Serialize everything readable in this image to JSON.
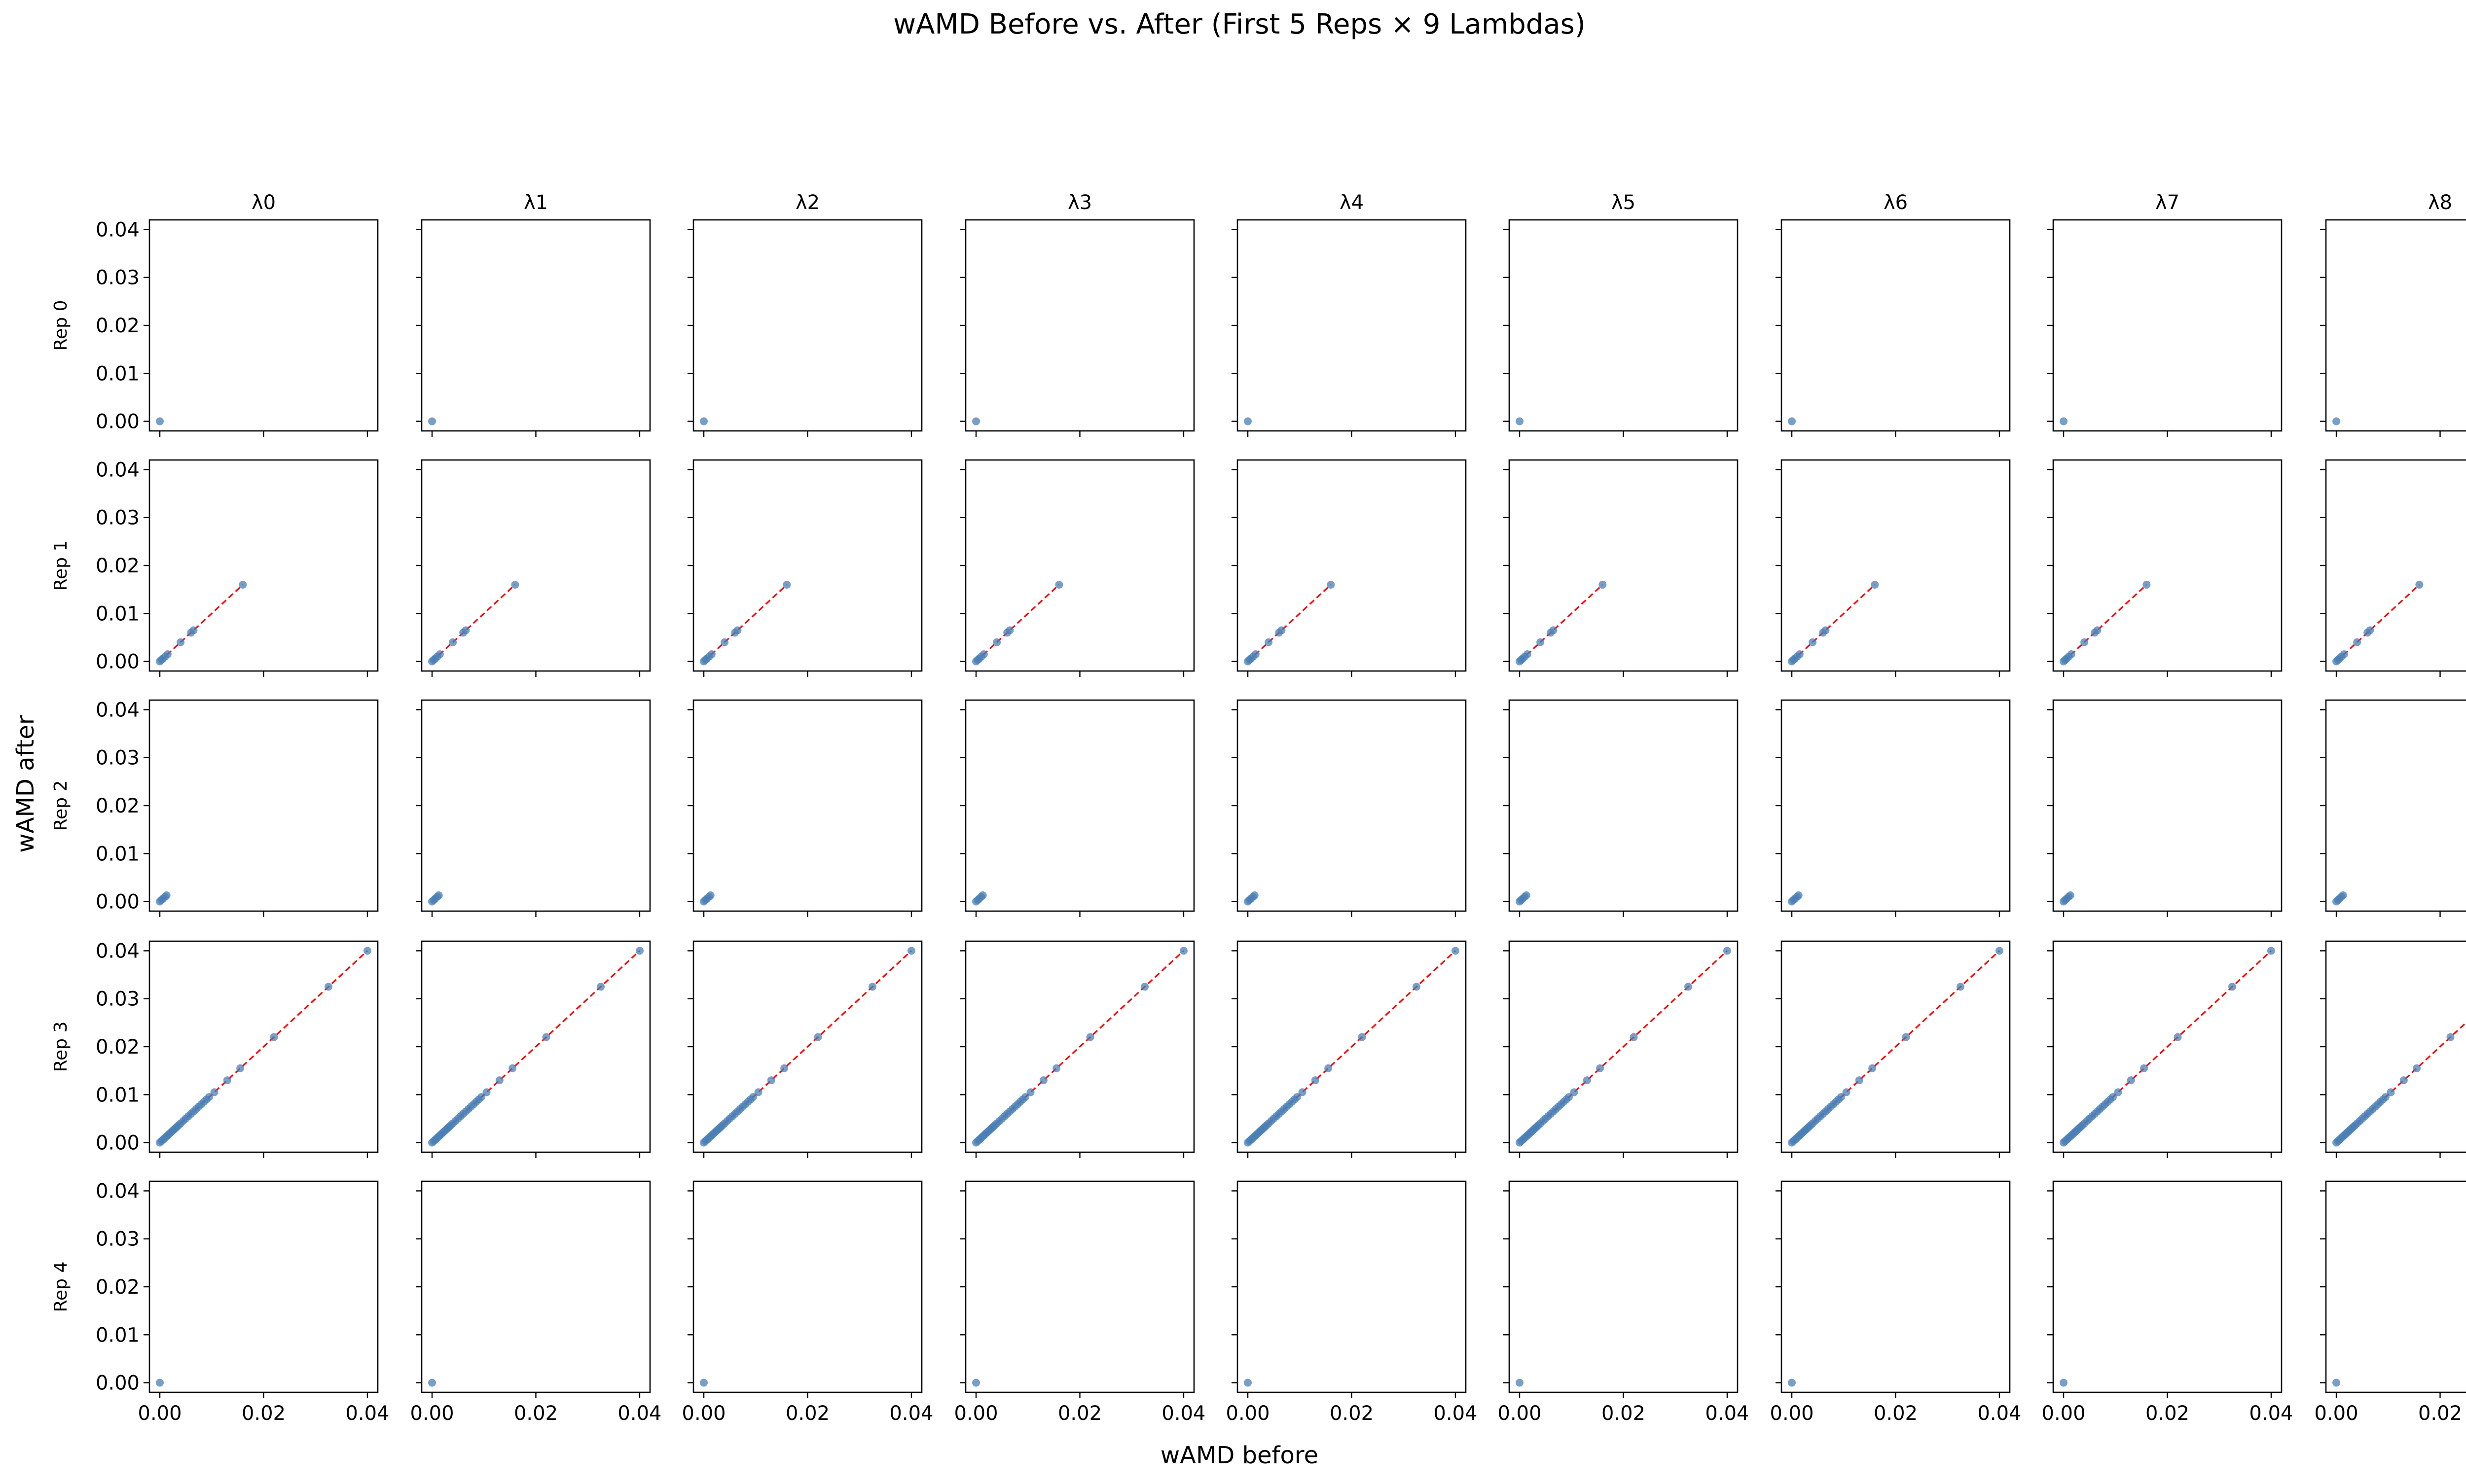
{
  "figure": {
    "title": "wAMD Before vs. After (First 5 Reps × 9 Lambdas)",
    "xlabel": "wAMD before",
    "ylabel": "wAMD after",
    "col_titles": [
      "λ0",
      "λ1",
      "λ2",
      "λ3",
      "λ4",
      "λ5",
      "λ6",
      "λ7",
      "λ8"
    ],
    "row_labels": [
      "Rep 0",
      "Rep 1",
      "Rep 2",
      "Rep 3",
      "Rep 4"
    ],
    "x_ticks": [
      "0.00",
      "0.02",
      "0.04"
    ],
    "y_ticks": [
      "0.00",
      "0.01",
      "0.02",
      "0.03",
      "0.04"
    ]
  },
  "colors": {
    "points": "#4a7fb5",
    "reference_line": "#ff0000",
    "axes": "#000000"
  },
  "chart_data": {
    "type": "scatter",
    "layout": "grid 5 rows × 9 columns, shared axes",
    "xlim": [
      -0.002,
      0.042
    ],
    "ylim": [
      -0.002,
      0.042
    ],
    "x_tick_values": [
      0.0,
      0.02,
      0.04
    ],
    "y_tick_values": [
      0.0,
      0.01,
      0.02,
      0.03,
      0.04
    ],
    "reference_line": "y = x (red dashed)",
    "grid": false,
    "note_identical_across_lambdas": true,
    "rows": [
      {
        "label": "Rep 0",
        "points": [
          [
            0.0,
            0.0
          ]
        ]
      },
      {
        "label": "Rep 1",
        "points": [
          [
            0.0,
            0.0
          ],
          [
            0.0003,
            0.0003
          ],
          [
            0.0006,
            0.0006
          ],
          [
            0.001,
            0.001
          ],
          [
            0.0015,
            0.0015
          ],
          [
            0.004,
            0.004
          ],
          [
            0.006,
            0.006
          ],
          [
            0.0065,
            0.0065
          ],
          [
            0.016,
            0.016
          ]
        ]
      },
      {
        "label": "Rep 2",
        "points": [
          [
            0.0,
            0.0
          ],
          [
            0.0003,
            0.0003
          ],
          [
            0.0006,
            0.0006
          ],
          [
            0.001,
            0.001
          ],
          [
            0.0013,
            0.0013
          ]
        ]
      },
      {
        "label": "Rep 3",
        "points": [
          [
            0.0,
            0.0
          ],
          [
            0.0003,
            0.0003
          ],
          [
            0.0006,
            0.0006
          ],
          [
            0.0009,
            0.0009
          ],
          [
            0.0012,
            0.0012
          ],
          [
            0.0015,
            0.0015
          ],
          [
            0.0018,
            0.0018
          ],
          [
            0.0021,
            0.0021
          ],
          [
            0.0024,
            0.0024
          ],
          [
            0.0027,
            0.0027
          ],
          [
            0.003,
            0.003
          ],
          [
            0.0033,
            0.0033
          ],
          [
            0.0036,
            0.0036
          ],
          [
            0.004,
            0.004
          ],
          [
            0.0045,
            0.0045
          ],
          [
            0.005,
            0.005
          ],
          [
            0.0055,
            0.0055
          ],
          [
            0.006,
            0.006
          ],
          [
            0.0065,
            0.0065
          ],
          [
            0.007,
            0.007
          ],
          [
            0.0075,
            0.0075
          ],
          [
            0.008,
            0.008
          ],
          [
            0.0085,
            0.0085
          ],
          [
            0.009,
            0.009
          ],
          [
            0.0095,
            0.0095
          ],
          [
            0.0105,
            0.0105
          ],
          [
            0.013,
            0.013
          ],
          [
            0.0155,
            0.0155
          ],
          [
            0.022,
            0.022
          ],
          [
            0.0325,
            0.0325
          ],
          [
            0.04,
            0.04
          ]
        ]
      },
      {
        "label": "Rep 4",
        "points": [
          [
            0.0,
            0.0
          ]
        ]
      }
    ]
  }
}
